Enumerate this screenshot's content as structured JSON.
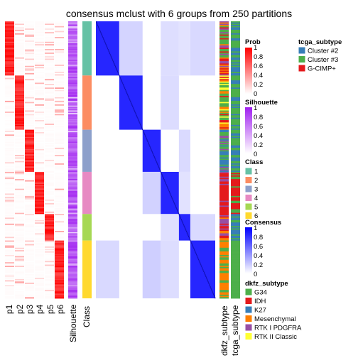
{
  "chart_data": {
    "type": "heatmap",
    "title": "consensus mclust with 6 groups from 250 partitions",
    "prob_columns": [
      "p1",
      "p2",
      "p3",
      "p4",
      "p5",
      "p6"
    ],
    "silhouette_label": "Silhouette",
    "class_label": "Class",
    "annotation_labels": [
      "dkfz_subtype",
      "tcga_subtype"
    ],
    "class_sizes": [
      45,
      45,
      35,
      35,
      22,
      48
    ],
    "legends": {
      "prob": {
        "title": "Prob",
        "ticks": [
          "1",
          "0.8",
          "0.6",
          "0.4",
          "0.2",
          "0"
        ]
      },
      "silhouette": {
        "title": "Silhouette",
        "ticks": [
          "1",
          "0.8",
          "0.6",
          "0.4",
          "0.2",
          "0"
        ]
      },
      "class": {
        "title": "Class",
        "items": [
          "1",
          "2",
          "3",
          "4",
          "5",
          "6"
        ],
        "colors": [
          "#66C2A5",
          "#FC8D62",
          "#8DA0CB",
          "#E78AC3",
          "#A6D854",
          "#FFD92F"
        ]
      },
      "consensus": {
        "title": "Consensus",
        "ticks": [
          "1",
          "0.8",
          "0.6",
          "0.4",
          "0.2",
          "0"
        ]
      },
      "dkfz_subtype": {
        "title": "dkfz_subtype",
        "items": [
          "G34",
          "IDH",
          "K27",
          "Mesenchymal",
          "RTK I PDGFRA",
          "RTK II Classic"
        ],
        "colors": [
          "#4DAF4A",
          "#E41A1C",
          "#377EB8",
          "#FF7F00",
          "#984EA3",
          "#FFFF33"
        ]
      },
      "tcga_subtype": {
        "title": "tcga_subtype",
        "items": [
          "Cluster #2",
          "Cluster #3",
          "G-CIMP+"
        ],
        "colors": [
          "#377EB8",
          "#4DAF4A",
          "#E41A1C"
        ]
      }
    }
  }
}
